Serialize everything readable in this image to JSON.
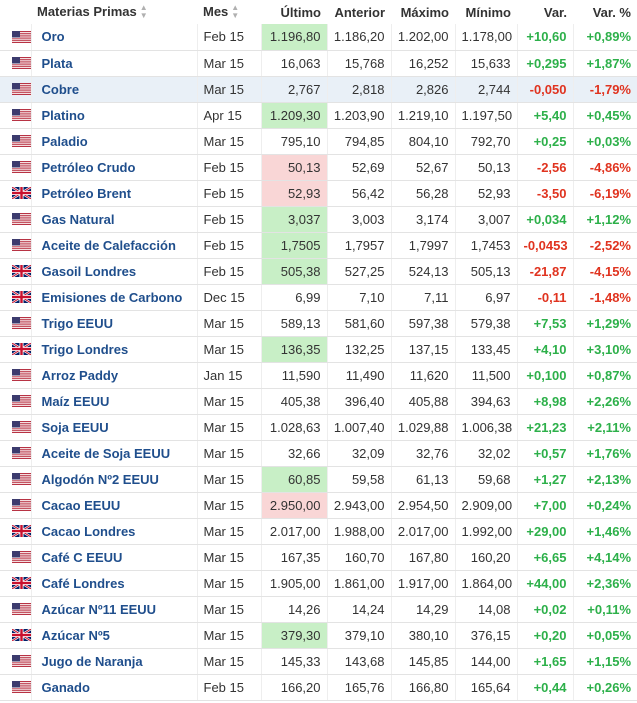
{
  "headers": {
    "name": "Materias Primas",
    "month": "Mes",
    "last": "Último",
    "prev": "Anterior",
    "high": "Máximo",
    "low": "Mínimo",
    "chg": "Var.",
    "chgpct": "Var. %"
  },
  "rows": [
    {
      "flag": "us",
      "name": "Oro",
      "month": "Feb 15",
      "last": "1.196,80",
      "prev": "1.186,20",
      "high": "1.202,00",
      "low": "1.178,00",
      "chg": "+10,60",
      "chgpct": "+0,89%",
      "dir": "up",
      "flash": "up"
    },
    {
      "flag": "us",
      "name": "Plata",
      "month": "Mar 15",
      "last": "16,063",
      "prev": "15,768",
      "high": "16,252",
      "low": "15,633",
      "chg": "+0,295",
      "chgpct": "+1,87%",
      "dir": "up",
      "flash": ""
    },
    {
      "flag": "us",
      "name": "Cobre",
      "month": "Mar 15",
      "last": "2,767",
      "prev": "2,818",
      "high": "2,826",
      "low": "2,744",
      "chg": "-0,050",
      "chgpct": "-1,79%",
      "dir": "down",
      "flash": "",
      "highlight": true
    },
    {
      "flag": "us",
      "name": "Platino",
      "month": "Apr 15",
      "last": "1.209,30",
      "prev": "1.203,90",
      "high": "1.219,10",
      "low": "1.197,50",
      "chg": "+5,40",
      "chgpct": "+0,45%",
      "dir": "up",
      "flash": "up"
    },
    {
      "flag": "us",
      "name": "Paladio",
      "month": "Mar 15",
      "last": "795,10",
      "prev": "794,85",
      "high": "804,10",
      "low": "792,70",
      "chg": "+0,25",
      "chgpct": "+0,03%",
      "dir": "up",
      "flash": ""
    },
    {
      "flag": "us",
      "name": "Petróleo Crudo",
      "month": "Feb 15",
      "last": "50,13",
      "prev": "52,69",
      "high": "52,67",
      "low": "50,13",
      "chg": "-2,56",
      "chgpct": "-4,86%",
      "dir": "down",
      "flash": "down"
    },
    {
      "flag": "uk",
      "name": "Petróleo Brent",
      "month": "Feb 15",
      "last": "52,93",
      "prev": "56,42",
      "high": "56,28",
      "low": "52,93",
      "chg": "-3,50",
      "chgpct": "-6,19%",
      "dir": "down",
      "flash": "down"
    },
    {
      "flag": "us",
      "name": "Gas Natural",
      "month": "Feb 15",
      "last": "3,037",
      "prev": "3,003",
      "high": "3,174",
      "low": "3,007",
      "chg": "+0,034",
      "chgpct": "+1,12%",
      "dir": "up",
      "flash": "up"
    },
    {
      "flag": "us",
      "name": "Aceite de Calefacción",
      "month": "Feb 15",
      "last": "1,7505",
      "prev": "1,7957",
      "high": "1,7997",
      "low": "1,7453",
      "chg": "-0,0453",
      "chgpct": "-2,52%",
      "dir": "down",
      "flash": "up"
    },
    {
      "flag": "uk",
      "name": "Gasoil Londres",
      "month": "Feb 15",
      "last": "505,38",
      "prev": "527,25",
      "high": "524,13",
      "low": "505,13",
      "chg": "-21,87",
      "chgpct": "-4,15%",
      "dir": "down",
      "flash": "up"
    },
    {
      "flag": "uk",
      "name": "Emisiones de Carbono",
      "month": "Dec 15",
      "last": "6,99",
      "prev": "7,10",
      "high": "7,11",
      "low": "6,97",
      "chg": "-0,11",
      "chgpct": "-1,48%",
      "dir": "down",
      "flash": ""
    },
    {
      "flag": "us",
      "name": "Trigo EEUU",
      "month": "Mar 15",
      "last": "589,13",
      "prev": "581,60",
      "high": "597,38",
      "low": "579,38",
      "chg": "+7,53",
      "chgpct": "+1,29%",
      "dir": "up",
      "flash": ""
    },
    {
      "flag": "uk",
      "name": "Trigo Londres",
      "month": "Mar 15",
      "last": "136,35",
      "prev": "132,25",
      "high": "137,15",
      "low": "133,45",
      "chg": "+4,10",
      "chgpct": "+3,10%",
      "dir": "up",
      "flash": "up"
    },
    {
      "flag": "us",
      "name": "Arroz Paddy",
      "month": "Jan 15",
      "last": "11,590",
      "prev": "11,490",
      "high": "11,620",
      "low": "11,500",
      "chg": "+0,100",
      "chgpct": "+0,87%",
      "dir": "up",
      "flash": ""
    },
    {
      "flag": "us",
      "name": "Maíz EEUU",
      "month": "Mar 15",
      "last": "405,38",
      "prev": "396,40",
      "high": "405,88",
      "low": "394,63",
      "chg": "+8,98",
      "chgpct": "+2,26%",
      "dir": "up",
      "flash": ""
    },
    {
      "flag": "us",
      "name": "Soja EEUU",
      "month": "Mar 15",
      "last": "1.028,63",
      "prev": "1.007,40",
      "high": "1.029,88",
      "low": "1.006,38",
      "chg": "+21,23",
      "chgpct": "+2,11%",
      "dir": "up",
      "flash": ""
    },
    {
      "flag": "us",
      "name": "Aceite de Soja EEUU",
      "month": "Mar 15",
      "last": "32,66",
      "prev": "32,09",
      "high": "32,76",
      "low": "32,02",
      "chg": "+0,57",
      "chgpct": "+1,76%",
      "dir": "up",
      "flash": ""
    },
    {
      "flag": "us",
      "name": "Algodón Nº2 EEUU",
      "month": "Mar 15",
      "last": "60,85",
      "prev": "59,58",
      "high": "61,13",
      "low": "59,68",
      "chg": "+1,27",
      "chgpct": "+2,13%",
      "dir": "up",
      "flash": "up"
    },
    {
      "flag": "us",
      "name": "Cacao EEUU",
      "month": "Mar 15",
      "last": "2.950,00",
      "prev": "2.943,00",
      "high": "2.954,50",
      "low": "2.909,00",
      "chg": "+7,00",
      "chgpct": "+0,24%",
      "dir": "up",
      "flash": "down"
    },
    {
      "flag": "uk",
      "name": "Cacao Londres",
      "month": "Mar 15",
      "last": "2.017,00",
      "prev": "1.988,00",
      "high": "2.017,00",
      "low": "1.992,00",
      "chg": "+29,00",
      "chgpct": "+1,46%",
      "dir": "up",
      "flash": ""
    },
    {
      "flag": "us",
      "name": "Café C EEUU",
      "month": "Mar 15",
      "last": "167,35",
      "prev": "160,70",
      "high": "167,80",
      "low": "160,20",
      "chg": "+6,65",
      "chgpct": "+4,14%",
      "dir": "up",
      "flash": ""
    },
    {
      "flag": "uk",
      "name": "Café Londres",
      "month": "Mar 15",
      "last": "1.905,00",
      "prev": "1.861,00",
      "high": "1.917,00",
      "low": "1.864,00",
      "chg": "+44,00",
      "chgpct": "+2,36%",
      "dir": "up",
      "flash": ""
    },
    {
      "flag": "us",
      "name": "Azúcar Nº11 EEUU",
      "month": "Mar 15",
      "last": "14,26",
      "prev": "14,24",
      "high": "14,29",
      "low": "14,08",
      "chg": "+0,02",
      "chgpct": "+0,11%",
      "dir": "up",
      "flash": ""
    },
    {
      "flag": "uk",
      "name": "Azúcar Nº5",
      "month": "Mar 15",
      "last": "379,30",
      "prev": "379,10",
      "high": "380,10",
      "low": "376,15",
      "chg": "+0,20",
      "chgpct": "+0,05%",
      "dir": "up",
      "flash": "up"
    },
    {
      "flag": "us",
      "name": "Jugo de Naranja",
      "month": "Mar 15",
      "last": "145,33",
      "prev": "143,68",
      "high": "145,85",
      "low": "144,00",
      "chg": "+1,65",
      "chgpct": "+1,15%",
      "dir": "up",
      "flash": ""
    },
    {
      "flag": "us",
      "name": "Ganado",
      "month": "Feb 15",
      "last": "166,20",
      "prev": "165,76",
      "high": "166,80",
      "low": "165,64",
      "chg": "+0,44",
      "chgpct": "+0,26%",
      "dir": "up",
      "flash": ""
    }
  ],
  "colors": {
    "name_link": "#1f4e8c",
    "up": "#2db04a",
    "down": "#e0331f",
    "flash_up_bg": "#c8efc6",
    "flash_down_bg": "#f9d6d6",
    "highlight_row_bg": "#e9f0f7"
  }
}
